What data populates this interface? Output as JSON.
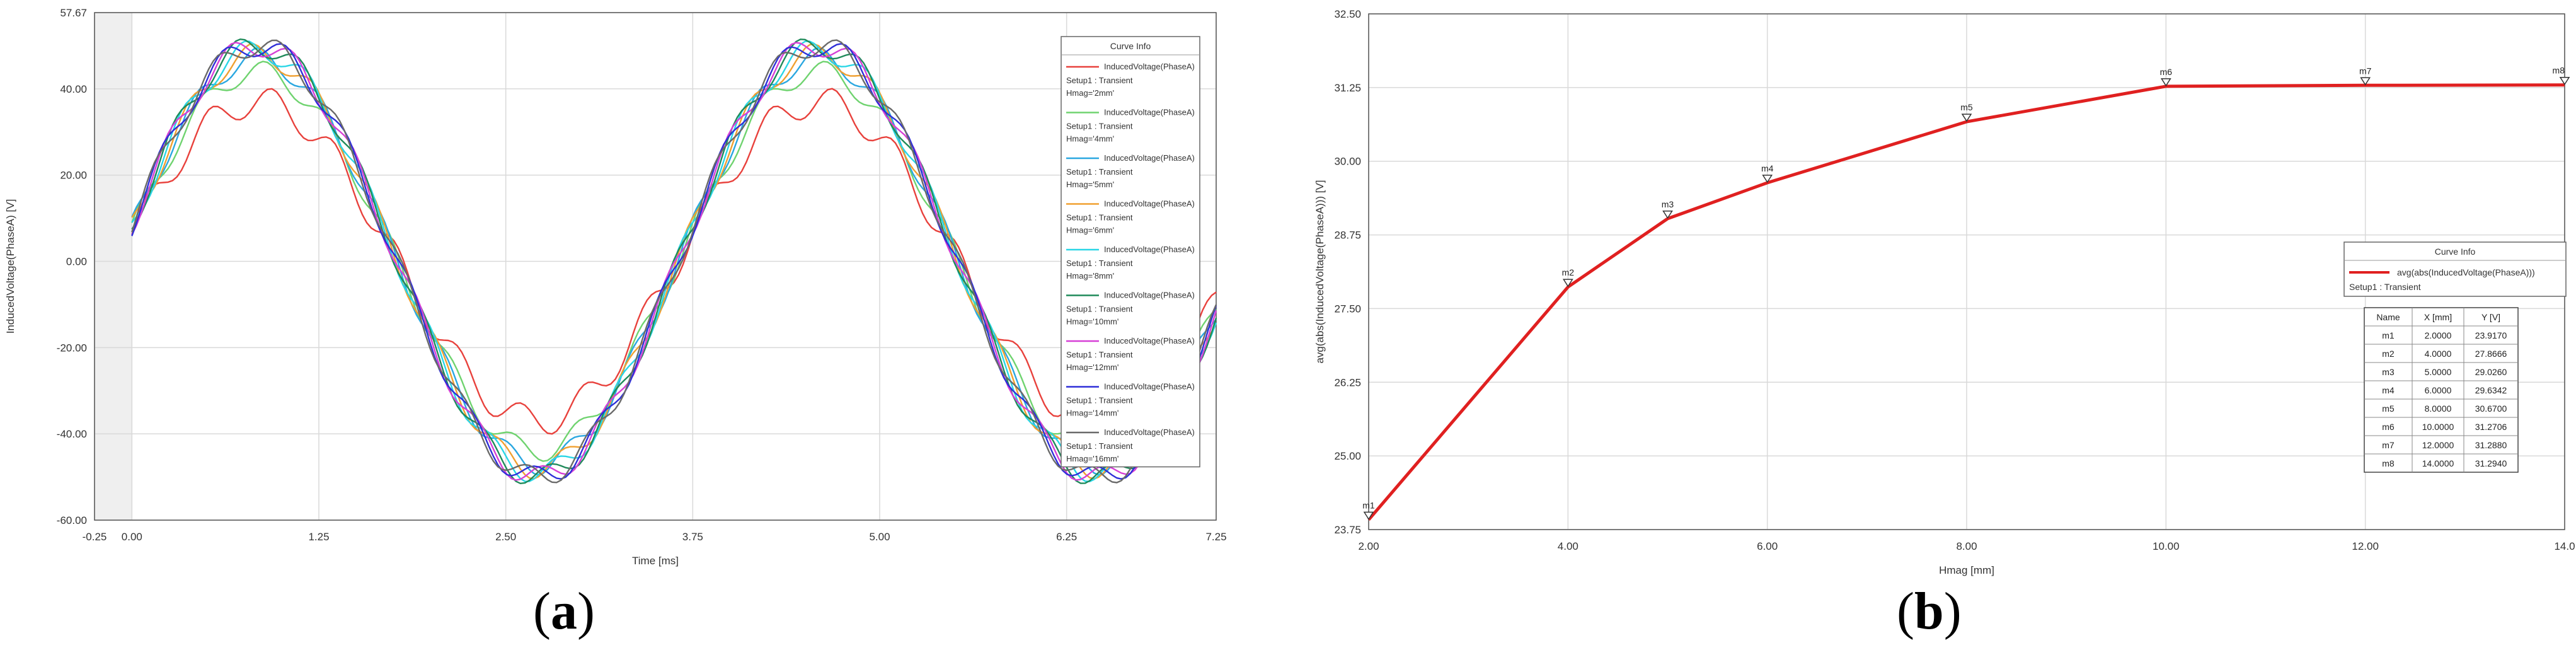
{
  "colors": {
    "plot_background": "#ffffff",
    "grid": "#d9d9d9",
    "negative_region": "#efefef",
    "axis": "#555555",
    "text": "#333333"
  },
  "chart_data": [
    {
      "type": "line",
      "panel": "a",
      "caption": "a",
      "title": "",
      "xlabel": "Time [ms]",
      "ylabel": "InducedVoltage(PhaseA) [V]",
      "xlim": [
        -0.25,
        7.25
      ],
      "ylim": [
        -60.0,
        57.67
      ],
      "x_ticks": [
        "-0.25",
        "0.00",
        "1.25",
        "2.50",
        "3.75",
        "5.00",
        "6.25",
        "7.25"
      ],
      "y_ticks": [
        "57.67",
        "40.00",
        "20.00",
        "0.00",
        "-20.00",
        "-40.00",
        "-60.00"
      ],
      "grid": true,
      "legend_title": "Curve Info",
      "legend_position": "right",
      "series_model": "V(t) = A·sin(2π·(t + 0.1)/3.75) + ripple·sin(2π·9·t/3.75)",
      "series": [
        {
          "name": "InducedVoltage(PhaseA)",
          "setup": "Setup1 : Transient",
          "param": "Hmag='2mm'",
          "color": "#e8413c",
          "amplitude": 37,
          "ripple": 3.5
        },
        {
          "name": "InducedVoltage(PhaseA)",
          "setup": "Setup1 : Transient",
          "param": "Hmag='4mm'",
          "color": "#6fd36f",
          "amplitude": 44,
          "ripple": 2.5
        },
        {
          "name": "InducedVoltage(PhaseA)",
          "setup": "Setup1 : Transient",
          "param": "Hmag='5mm'",
          "color": "#2aa7e0",
          "amplitude": 47,
          "ripple": 2.5
        },
        {
          "name": "InducedVoltage(PhaseA)",
          "setup": "Setup1 : Transient",
          "param": "Hmag='6mm'",
          "color": "#f0a030",
          "amplitude": 48,
          "ripple": 2.5
        },
        {
          "name": "InducedVoltage(PhaseA)",
          "setup": "Setup1 : Transient",
          "param": "Hmag='8mm'",
          "color": "#29d6e6",
          "amplitude": 49,
          "ripple": 2.5
        },
        {
          "name": "InducedVoltage(PhaseA)",
          "setup": "Setup1 : Transient",
          "param": "Hmag='10mm'",
          "color": "#1f8a5a",
          "amplitude": 50,
          "ripple": 2.5
        },
        {
          "name": "InducedVoltage(PhaseA)",
          "setup": "Setup1 : Transient",
          "param": "Hmag='12mm'",
          "color": "#d63fd6",
          "amplitude": 50,
          "ripple": 2.5
        },
        {
          "name": "InducedVoltage(PhaseA)",
          "setup": "Setup1 : Transient",
          "param": "Hmag='14mm'",
          "color": "#2f2fd8",
          "amplitude": 50,
          "ripple": 2.5
        },
        {
          "name": "InducedVoltage(PhaseA)",
          "setup": "Setup1 : Transient",
          "param": "Hmag='16mm'",
          "color": "#6a6a6a",
          "amplitude": 50,
          "ripple": 2.5
        }
      ]
    },
    {
      "type": "line",
      "panel": "b",
      "caption": "b",
      "title": "",
      "xlabel": "Hmag [mm]",
      "ylabel": "avg(abs(InducedVoltage(PhaseA))) [V]",
      "xlim": [
        2.0,
        14.0
      ],
      "ylim": [
        23.75,
        32.5
      ],
      "x_ticks": [
        "2.00",
        "4.00",
        "6.00",
        "8.00",
        "10.00",
        "12.00",
        "14.0"
      ],
      "y_ticks": [
        "32.50",
        "31.25",
        "30.00",
        "28.75",
        "27.50",
        "26.25",
        "25.00",
        "23.75"
      ],
      "grid": true,
      "legend_title": "Curve Info",
      "legend_position": "right",
      "series": [
        {
          "name": "avg(abs(InducedVoltage(PhaseA)))",
          "setup": "Setup1 : Transient",
          "color": "#e02020",
          "x": [
            2.0,
            4.0,
            5.0,
            6.0,
            8.0,
            10.0,
            12.0,
            14.0
          ],
          "y": [
            23.917,
            27.8666,
            29.026,
            29.6342,
            30.67,
            31.2706,
            31.288,
            31.294
          ]
        }
      ],
      "markers": [
        "m1",
        "m2",
        "m3",
        "m4",
        "m5",
        "m6",
        "m7",
        "m8"
      ],
      "marker_table": {
        "headers": [
          "Name",
          "X [mm]",
          "Y [V]"
        ],
        "rows": [
          [
            "m1",
            "2.0000",
            "23.9170"
          ],
          [
            "m2",
            "4.0000",
            "27.8666"
          ],
          [
            "m3",
            "5.0000",
            "29.0260"
          ],
          [
            "m4",
            "6.0000",
            "29.6342"
          ],
          [
            "m5",
            "8.0000",
            "30.6700"
          ],
          [
            "m6",
            "10.0000",
            "31.2706"
          ],
          [
            "m7",
            "12.0000",
            "31.2880"
          ],
          [
            "m8",
            "14.0000",
            "31.2940"
          ]
        ]
      }
    }
  ]
}
